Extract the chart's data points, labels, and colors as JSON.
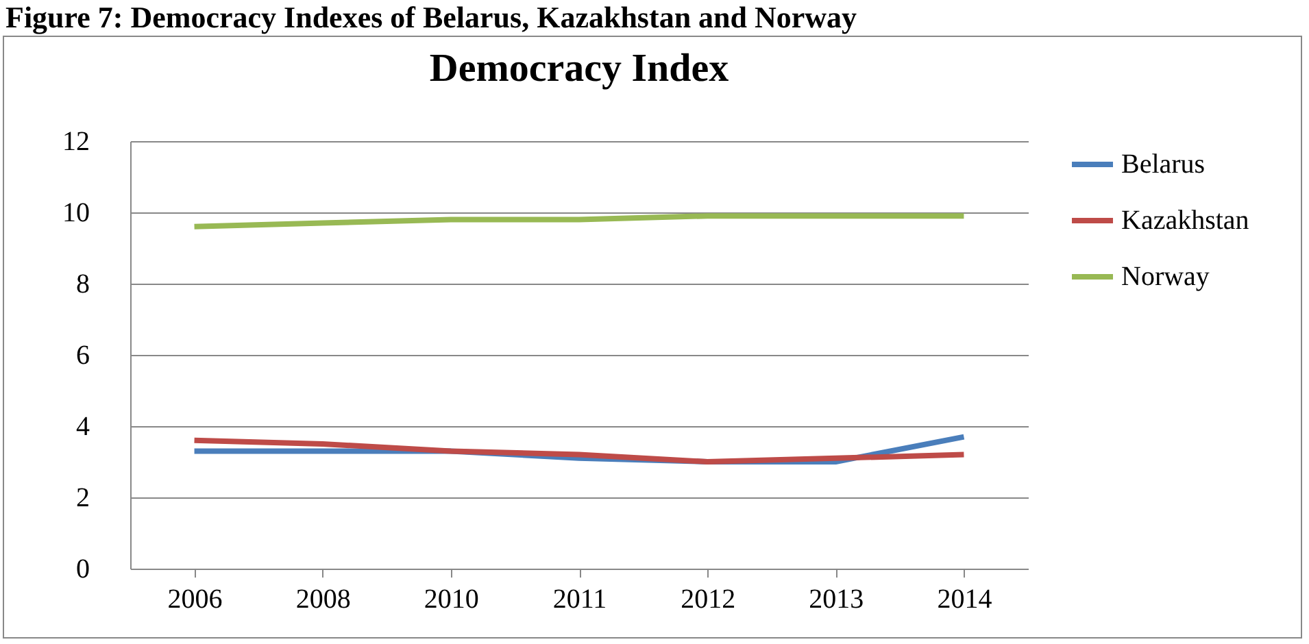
{
  "chart_data": {
    "type": "line",
    "title": "Democracy Index",
    "annotations": [
      "Figure 7: Democracy Indexes of Belarus, Kazakhstan and Norway"
    ],
    "categories": [
      "2006",
      "2008",
      "2010",
      "2011",
      "2012",
      "2013",
      "2014"
    ],
    "series": [
      {
        "name": "Belarus",
        "color": "#4a7ebb",
        "values": [
          3.3,
          3.3,
          3.3,
          3.1,
          3.0,
          3.0,
          3.7
        ]
      },
      {
        "name": "Kazakhstan",
        "color": "#be4b48",
        "values": [
          3.6,
          3.5,
          3.3,
          3.2,
          3.0,
          3.1,
          3.2
        ]
      },
      {
        "name": "Norway",
        "color": "#98b954",
        "values": [
          9.6,
          9.7,
          9.8,
          9.8,
          9.9,
          9.9,
          9.9
        ]
      }
    ],
    "ylim": [
      0,
      12
    ],
    "yticks": [
      0,
      2,
      4,
      6,
      8,
      10,
      12
    ],
    "grid": "y",
    "legend": "right",
    "marker": "none",
    "line_style": "solid"
  }
}
